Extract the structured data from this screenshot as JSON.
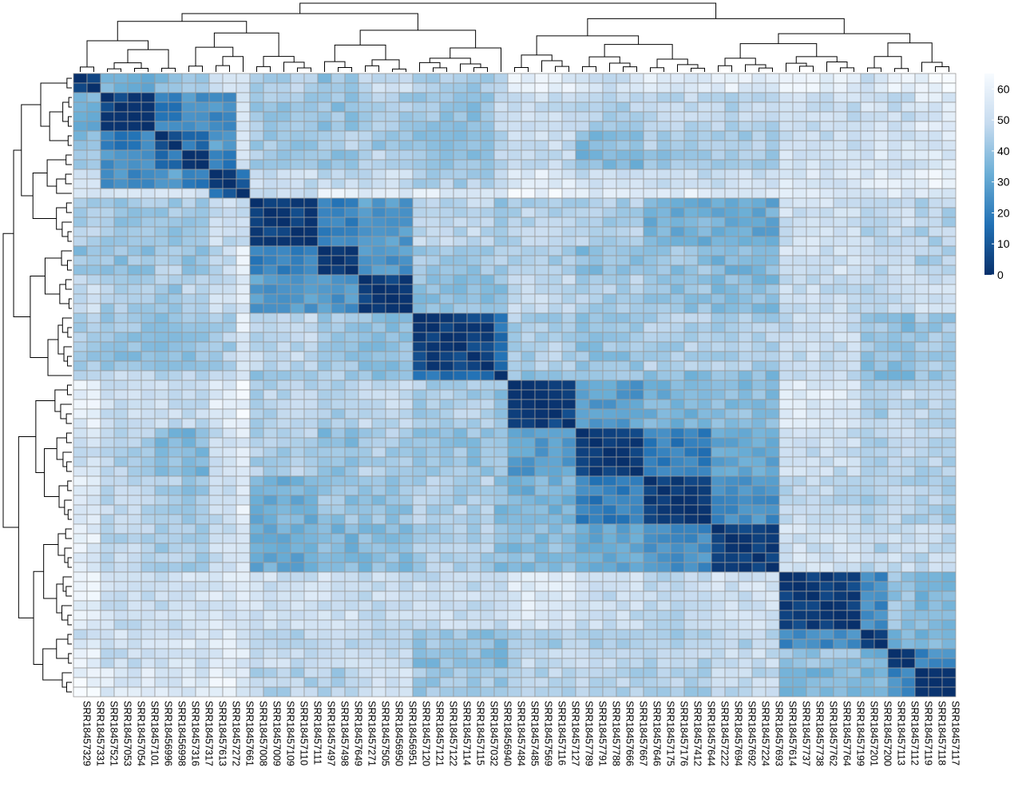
{
  "chart_data": {
    "type": "heatmap",
    "title": "",
    "labels": [
      "SRR18457329",
      "SRR18457331",
      "SRR18457521",
      "SRR18457053",
      "SRR18457054",
      "SRR18457101",
      "SRR18456996",
      "SRR18456998",
      "SRR18457316",
      "SRR18457317",
      "SRR18457613",
      "SRR18457272",
      "SRR18457661",
      "SRR18457008",
      "SRR18457009",
      "SRR18457109",
      "SRR18457110",
      "SRR18457111",
      "SRR18457497",
      "SRR18457498",
      "SRR18457649",
      "SRR18457271",
      "SRR18457505",
      "SRR18456950",
      "SRR18456951",
      "SRR18457120",
      "SRR18457121",
      "SRR18457122",
      "SRR18457114",
      "SRR18457115",
      "SRR18457032",
      "SRR18456940",
      "SRR18457484",
      "SRR18457485",
      "SRR18457569",
      "SRR18457116",
      "SRR18457127",
      "SRR18457789",
      "SRR18457791",
      "SRR18457788",
      "SRR18457666",
      "SRR18457667",
      "SRR18457646",
      "SRR18457175",
      "SRR18457176",
      "SRR18457412",
      "SRR18457644",
      "SRR18457222",
      "SRR18457694",
      "SRR18457692",
      "SRR18457224",
      "SRR18457693",
      "SRR18457614",
      "SRR18457737",
      "SRR18457738",
      "SRR18457762",
      "SRR18457764",
      "SRR18457199",
      "SRR18457201",
      "SRR18457200",
      "SRR18457113",
      "SRR18457112",
      "SRR18457119",
      "SRR18457118",
      "SRR18457117"
    ],
    "clusters": [
      [
        0,
        2
      ],
      [
        2,
        6
      ],
      [
        6,
        8
      ],
      [
        8,
        10
      ],
      [
        10,
        12
      ],
      [
        12,
        13
      ],
      [
        13,
        18
      ],
      [
        18,
        21
      ],
      [
        21,
        25
      ],
      [
        25,
        31
      ],
      [
        31,
        32
      ],
      [
        32,
        37
      ],
      [
        37,
        42
      ],
      [
        42,
        47
      ],
      [
        47,
        52
      ],
      [
        52,
        58
      ],
      [
        58,
        60
      ],
      [
        60,
        62
      ],
      [
        62,
        65
      ]
    ],
    "block_means": [
      [
        3,
        34,
        38,
        40,
        50,
        58,
        44,
        40,
        50,
        42,
        47,
        58,
        52,
        56,
        57,
        58,
        52,
        58,
        62
      ],
      [
        34,
        3,
        20,
        26,
        24,
        54,
        42,
        40,
        44,
        40,
        47,
        50,
        45,
        48,
        47,
        50,
        52,
        50,
        55
      ],
      [
        38,
        20,
        3,
        16,
        28,
        56,
        42,
        44,
        42,
        40,
        46,
        50,
        38,
        44,
        44,
        50,
        54,
        52,
        55
      ],
      [
        40,
        26,
        16,
        3,
        18,
        56,
        44,
        40,
        47,
        40,
        46,
        48,
        36,
        40,
        44,
        52,
        54,
        52,
        55
      ],
      [
        50,
        24,
        28,
        18,
        3,
        14,
        50,
        48,
        50,
        44,
        50,
        56,
        50,
        48,
        50,
        54,
        56,
        56,
        60
      ],
      [
        58,
        54,
        56,
        56,
        14,
        3,
        50,
        58,
        56,
        56,
        56,
        62,
        56,
        58,
        56,
        56,
        56,
        56,
        58
      ],
      [
        44,
        42,
        42,
        44,
        50,
        50,
        3,
        20,
        28,
        48,
        42,
        46,
        44,
        34,
        32,
        52,
        46,
        50,
        46
      ],
      [
        40,
        40,
        44,
        40,
        48,
        58,
        20,
        3,
        26,
        42,
        44,
        42,
        38,
        40,
        36,
        52,
        48,
        52,
        44
      ],
      [
        50,
        44,
        42,
        47,
        50,
        56,
        28,
        26,
        3,
        40,
        38,
        48,
        44,
        40,
        38,
        50,
        46,
        48,
        52
      ],
      [
        42,
        40,
        40,
        40,
        44,
        56,
        48,
        42,
        40,
        3,
        18,
        44,
        40,
        44,
        44,
        50,
        40,
        38,
        42
      ],
      [
        47,
        47,
        46,
        46,
        50,
        56,
        42,
        44,
        38,
        18,
        3,
        40,
        42,
        38,
        38,
        50,
        36,
        36,
        40
      ],
      [
        58,
        50,
        50,
        48,
        56,
        62,
        46,
        42,
        48,
        44,
        40,
        3,
        28,
        34,
        38,
        56,
        44,
        48,
        46
      ],
      [
        52,
        45,
        38,
        36,
        50,
        56,
        44,
        38,
        44,
        40,
        42,
        28,
        3,
        20,
        32,
        50,
        46,
        48,
        46
      ],
      [
        56,
        48,
        44,
        40,
        48,
        58,
        34,
        40,
        40,
        44,
        38,
        34,
        20,
        3,
        24,
        48,
        44,
        46,
        44
      ],
      [
        57,
        47,
        44,
        44,
        50,
        56,
        32,
        36,
        38,
        44,
        38,
        38,
        32,
        24,
        3,
        52,
        46,
        50,
        48
      ],
      [
        58,
        50,
        50,
        52,
        54,
        56,
        52,
        52,
        50,
        50,
        50,
        56,
        50,
        48,
        52,
        3,
        24,
        40,
        36
      ],
      [
        52,
        52,
        54,
        54,
        56,
        56,
        46,
        48,
        46,
        40,
        36,
        44,
        46,
        44,
        46,
        24,
        3,
        34,
        36
      ],
      [
        58,
        50,
        52,
        52,
        56,
        56,
        50,
        52,
        48,
        38,
        36,
        48,
        48,
        46,
        50,
        40,
        34,
        3,
        22
      ],
      [
        62,
        55,
        55,
        55,
        60,
        58,
        46,
        44,
        52,
        42,
        40,
        46,
        46,
        44,
        48,
        36,
        36,
        22,
        3
      ]
    ],
    "color_scale": {
      "min": 0,
      "max": 65,
      "colors": [
        "#08306b",
        "#2171b5",
        "#6baed6",
        "#c6dbef",
        "#f7fbff"
      ]
    },
    "colorbar_ticks": [
      0,
      10,
      20,
      30,
      40,
      50,
      60
    ],
    "cell_border_color": "#999999",
    "row_dendrogram": true,
    "column_dendrogram": true
  }
}
